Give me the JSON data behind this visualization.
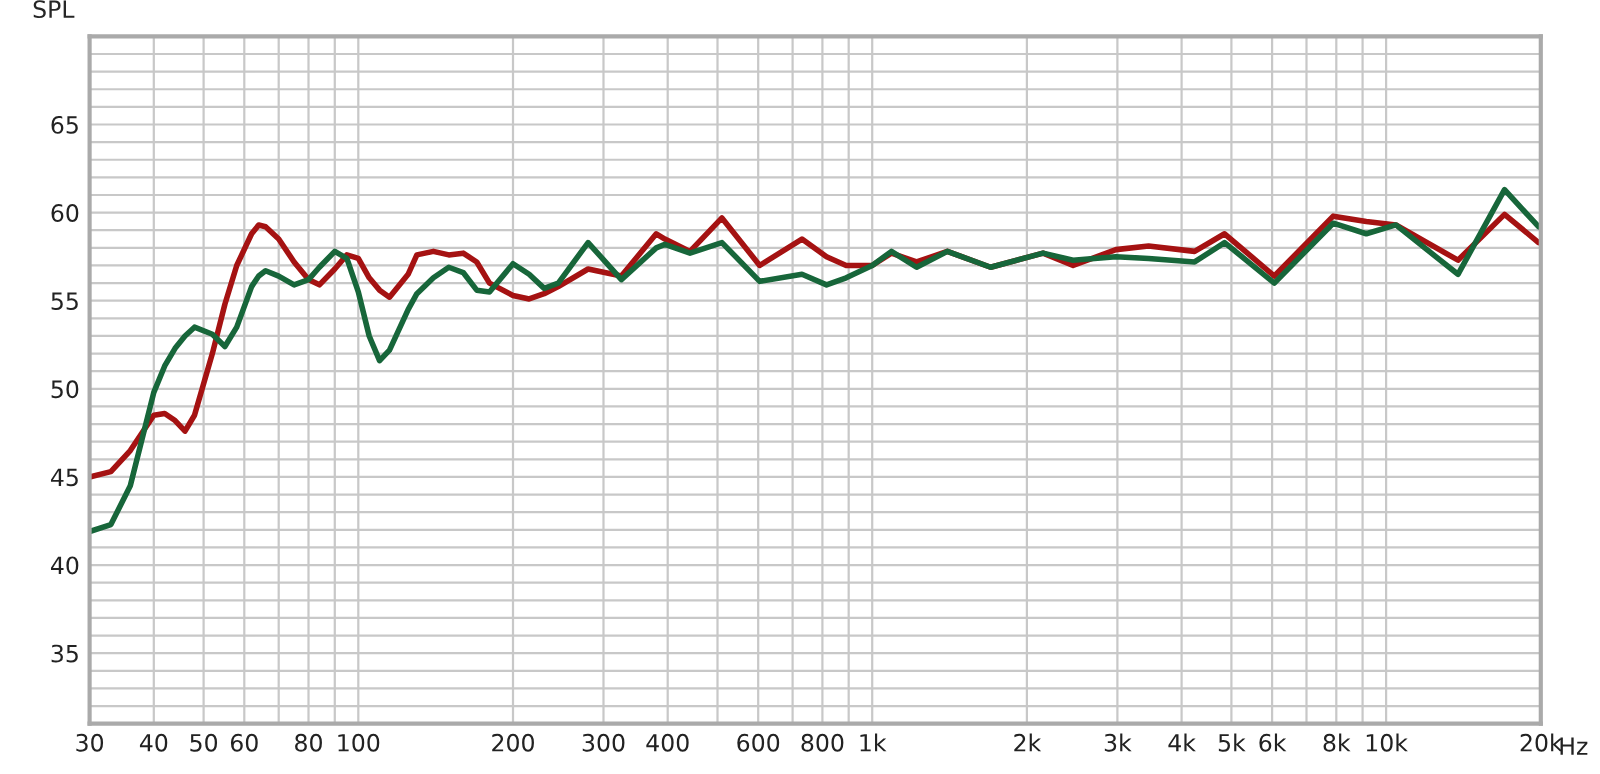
{
  "chart_data": {
    "type": "line",
    "ylabel": "SPL",
    "log": "x",
    "grid": true,
    "xlim": [
      30,
      20000
    ],
    "ylim": [
      31,
      70
    ],
    "xticks": [
      30,
      40,
      50,
      60,
      {
        "value": 70,
        "label": null
      },
      80,
      {
        "value": 90,
        "label": null
      },
      100,
      200,
      300,
      400,
      {
        "value": 500,
        "label": null
      },
      600,
      {
        "value": 700,
        "label": null
      },
      800,
      {
        "value": 900,
        "label": null
      },
      {
        "value": 1000,
        "label": "1k"
      },
      {
        "value": 2000,
        "label": "2k"
      },
      {
        "value": 3000,
        "label": "3k"
      },
      {
        "value": 4000,
        "label": "4k"
      },
      {
        "value": 5000,
        "label": "5k"
      },
      {
        "value": 6000,
        "label": "6k"
      },
      {
        "value": 7000,
        "label": null
      },
      {
        "value": 8000,
        "label": "8k"
      },
      {
        "value": 9000,
        "label": null
      },
      {
        "value": 10000,
        "label": "10k"
      },
      {
        "value": 20000,
        "label": "20k"
      }
    ],
    "xlabel": "Hz",
    "yticks": [
      {
        "value": 32,
        "label": null
      },
      {
        "value": 33,
        "label": null
      },
      {
        "value": 34,
        "label": null
      },
      35,
      {
        "value": 36,
        "label": null
      },
      {
        "value": 37,
        "label": null
      },
      {
        "value": 38,
        "label": null
      },
      {
        "value": 39,
        "label": null
      },
      40,
      {
        "value": 41,
        "label": null
      },
      {
        "value": 42,
        "label": null
      },
      {
        "value": 43,
        "label": null
      },
      {
        "value": 44,
        "label": null
      },
      45,
      {
        "value": 46,
        "label": null
      },
      {
        "value": 47,
        "label": null
      },
      {
        "value": 48,
        "label": null
      },
      {
        "value": 49,
        "label": null
      },
      50,
      {
        "value": 51,
        "label": null
      },
      {
        "value": 52,
        "label": null
      },
      {
        "value": 53,
        "label": null
      },
      {
        "value": 54,
        "label": null
      },
      55,
      {
        "value": 56,
        "label": null
      },
      {
        "value": 57,
        "label": null
      },
      {
        "value": 58,
        "label": null
      },
      {
        "value": 59,
        "label": null
      },
      60,
      {
        "value": 61,
        "label": null
      },
      {
        "value": 62,
        "label": null
      },
      {
        "value": 63,
        "label": null
      },
      {
        "value": 64,
        "label": null
      },
      65,
      {
        "value": 66,
        "label": null
      },
      {
        "value": 67,
        "label": null
      },
      {
        "value": 68,
        "label": null
      },
      {
        "value": 69,
        "label": null
      }
    ],
    "x": [
      30,
      33,
      36,
      40,
      42,
      44,
      46,
      48,
      52,
      55,
      58,
      62,
      64,
      66,
      70,
      75,
      80,
      84,
      90,
      95,
      100,
      105,
      110,
      115,
      125,
      130,
      140,
      150,
      160,
      170,
      180,
      200,
      215,
      230,
      245,
      280,
      325,
      380,
      395,
      442,
      510,
      604,
      730,
      815,
      890,
      1000,
      1090,
      1220,
      1400,
      1700,
      2150,
      2460,
      2980,
      3450,
      4240,
      4850,
      6060,
      7890,
      9150,
      10450,
      13800,
      17000,
      19800
    ],
    "series": [
      {
        "color": "#a51212",
        "values": [
          45.0,
          45.3,
          46.5,
          48.5,
          48.6,
          48.2,
          47.6,
          48.5,
          52.0,
          54.8,
          57.0,
          58.8,
          59.3,
          59.2,
          58.5,
          57.2,
          56.2,
          55.9,
          56.8,
          57.6,
          57.4,
          56.3,
          55.6,
          55.2,
          56.5,
          57.6,
          57.8,
          57.6,
          57.7,
          57.2,
          56.0,
          55.3,
          55.1,
          55.4,
          55.8,
          56.8,
          56.4,
          58.8,
          58.5,
          57.8,
          59.7,
          57.0,
          58.5,
          57.5,
          57.0,
          57.0,
          57.7,
          57.2,
          57.8,
          56.9,
          57.7,
          57.0,
          57.9,
          58.1,
          57.8,
          58.8,
          56.4,
          59.8,
          59.5,
          59.3,
          57.3,
          59.9,
          58.3
        ]
      },
      {
        "color": "#17663a",
        "values": [
          41.9,
          42.3,
          44.5,
          49.8,
          51.3,
          52.3,
          53.0,
          53.5,
          53.1,
          52.4,
          53.5,
          55.8,
          56.4,
          56.7,
          56.4,
          55.9,
          56.2,
          56.9,
          57.8,
          57.4,
          55.5,
          53.0,
          51.6,
          52.2,
          54.5,
          55.4,
          56.3,
          56.9,
          56.6,
          55.6,
          55.5,
          57.1,
          56.5,
          55.7,
          56.0,
          58.3,
          56.2,
          58.0,
          58.2,
          57.7,
          58.3,
          56.1,
          56.5,
          55.9,
          56.3,
          57.0,
          57.8,
          56.9,
          57.8,
          56.9,
          57.7,
          57.3,
          57.5,
          57.4,
          57.2,
          58.3,
          56.0,
          59.4,
          58.8,
          59.3,
          56.5,
          61.3,
          59.2
        ]
      }
    ]
  }
}
